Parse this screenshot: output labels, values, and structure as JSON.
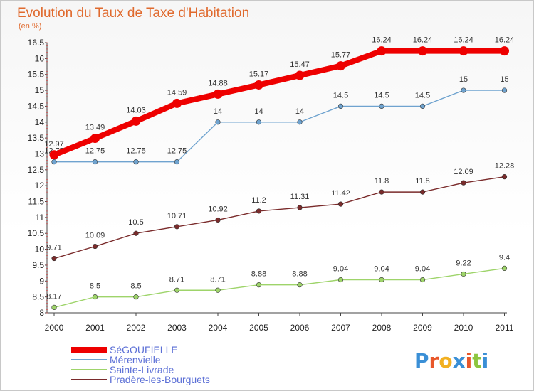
{
  "title": "Evolution du Taux de Taxe d'Habitation",
  "subtitle": "(en %)",
  "logo": "Proxiti",
  "chart_data": {
    "type": "line",
    "title": "Evolution du Taux de Taxe d'Habitation",
    "ylabel": "(en %)",
    "xlabel": "",
    "x": [
      "2000",
      "2001",
      "2002",
      "2003",
      "2004",
      "2005",
      "2006",
      "2007",
      "2008",
      "2009",
      "2010",
      "2011"
    ],
    "ylim": [
      8,
      16.5
    ],
    "yticks": [
      "8",
      "8.5",
      "9",
      "9.5",
      "10",
      "10.5",
      "11",
      "11.5",
      "12",
      "12.5",
      "13",
      "13.5",
      "14",
      "14.5",
      "15",
      "15.5",
      "16",
      "16.5"
    ],
    "grid": false,
    "legend": "bottom-left",
    "series": [
      {
        "name": "SéGOUFIELLE",
        "color": "#ee0000",
        "values": [
          12.97,
          13.49,
          14.03,
          14.59,
          14.88,
          15.17,
          15.47,
          15.77,
          16.24,
          16.24,
          16.24,
          16.24
        ],
        "labels": [
          "12.97",
          "13.49",
          "14.03",
          "14.59",
          "14.88",
          "15.17",
          "15.47",
          "15.77",
          "16.24",
          "16.24",
          "16.24",
          "16.24"
        ]
      },
      {
        "name": "Mérenvielle",
        "color": "#6fa3cf",
        "values": [
          12.75,
          12.75,
          12.75,
          12.75,
          14,
          14,
          14,
          14.5,
          14.5,
          14.5,
          15,
          15
        ],
        "labels": [
          "12.75",
          "12.75",
          "12.75",
          "12.75",
          "14",
          "14",
          "14",
          "14.5",
          "14.5",
          "14.5",
          "15",
          "15"
        ]
      },
      {
        "name": "Sainte-Livrade",
        "color": "#9ed46a",
        "values": [
          8.17,
          8.5,
          8.5,
          8.71,
          8.71,
          8.88,
          8.88,
          9.04,
          9.04,
          9.04,
          9.22,
          9.4
        ],
        "labels": [
          "8.17",
          "8.5",
          "8.5",
          "8.71",
          "8.71",
          "8.88",
          "8.88",
          "9.04",
          "9.04",
          "9.04",
          "9.22",
          "9.4"
        ]
      },
      {
        "name": "Pradère-les-Bourguets",
        "color": "#7a2b2b",
        "values": [
          9.71,
          10.09,
          10.5,
          10.71,
          10.92,
          11.2,
          11.31,
          11.42,
          11.8,
          11.8,
          12.09,
          12.28
        ],
        "labels": [
          "9.71",
          "10.09",
          "10.5",
          "10.71",
          "10.92",
          "11.2",
          "11.31",
          "11.42",
          "11.8",
          "11.8",
          "12.09",
          "12.28"
        ]
      }
    ]
  }
}
